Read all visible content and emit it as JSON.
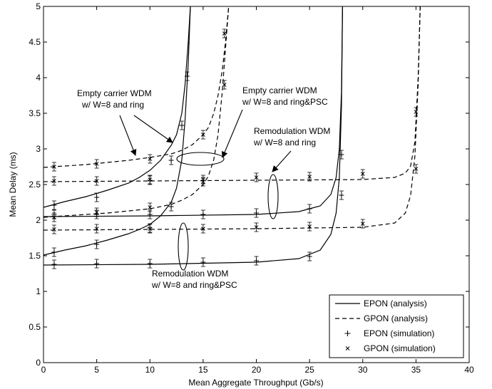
{
  "chart_data": {
    "type": "line",
    "xlabel": "Mean Aggregate Throughput (Gb/s)",
    "ylabel": "Mean Delay (ms)",
    "xlim": [
      0,
      40
    ],
    "ylim": [
      0,
      5
    ],
    "xticks": [
      0,
      5,
      10,
      15,
      20,
      25,
      30,
      35,
      40
    ],
    "yticks": [
      0,
      0.5,
      1,
      1.5,
      2,
      2.5,
      3,
      3.5,
      4,
      4.5,
      5
    ],
    "grid": false,
    "legend_position": "bottom-right",
    "legend": [
      {
        "label": "EPON (analysis)",
        "style": "solid"
      },
      {
        "label": "GPON (analysis)",
        "style": "dashed"
      },
      {
        "label": "EPON (simulation)",
        "style": "plus"
      },
      {
        "label": "GPON (simulation)",
        "style": "cross"
      }
    ],
    "annotations": [
      {
        "id": "ann-empty-ring",
        "lines": [
          "Empty carrier WDM",
          "w/ W=8 and ring"
        ]
      },
      {
        "id": "ann-empty-ringpsc",
        "lines": [
          "Empty carrier WDM",
          "w/ W=8 and ring&PSC"
        ]
      },
      {
        "id": "ann-remod-ring",
        "lines": [
          "Remodulation WDM",
          "w/ W=8 and ring"
        ]
      },
      {
        "id": "ann-remod-ringpsc",
        "lines": [
          "Remodulation WDM",
          "w/ W=8 and ring&PSC"
        ]
      }
    ],
    "series": [
      {
        "style": "solid",
        "x": [
          0,
          2,
          4,
          6,
          8,
          9,
          10,
          11,
          12,
          12.5,
          13,
          13.3,
          13.6,
          13.8
        ],
        "y": [
          2.18,
          2.26,
          2.33,
          2.42,
          2.52,
          2.6,
          2.7,
          2.84,
          3.05,
          3.2,
          3.5,
          3.9,
          4.5,
          5.0
        ]
      },
      {
        "style": "solid",
        "x": [
          0,
          2,
          4,
          6,
          8,
          9,
          10,
          11,
          12,
          12.5,
          13,
          13.3,
          13.6,
          13.8
        ],
        "y": [
          1.51,
          1.58,
          1.64,
          1.72,
          1.81,
          1.87,
          1.94,
          2.06,
          2.25,
          2.45,
          2.85,
          3.4,
          4.2,
          5.0
        ]
      },
      {
        "style": "dashed",
        "x": [
          0,
          2,
          4,
          6,
          8,
          10,
          12,
          13,
          14,
          15,
          15.5,
          16,
          16.4,
          16.8,
          17.1,
          17.4
        ],
        "y": [
          2.74,
          2.76,
          2.78,
          2.81,
          2.84,
          2.88,
          2.93,
          2.98,
          3.06,
          3.2,
          3.3,
          3.5,
          3.75,
          4.1,
          4.5,
          5.0
        ]
      },
      {
        "style": "dashed",
        "x": [
          0,
          2,
          4,
          6,
          8,
          10,
          12,
          13,
          14,
          15,
          15.5,
          16,
          16.4,
          16.8,
          17.1,
          17.4
        ],
        "y": [
          2.04,
          2.06,
          2.08,
          2.1,
          2.13,
          2.16,
          2.22,
          2.28,
          2.36,
          2.5,
          2.62,
          2.85,
          3.2,
          3.8,
          4.4,
          5.0
        ]
      },
      {
        "style": "solid",
        "x": [
          0,
          10,
          20,
          24,
          26,
          27,
          27.5,
          27.8,
          28,
          28.1
        ],
        "y": [
          2.05,
          2.06,
          2.08,
          2.12,
          2.2,
          2.36,
          2.6,
          3.0,
          3.8,
          5.0
        ]
      },
      {
        "style": "solid",
        "x": [
          0,
          10,
          20,
          24,
          26,
          27,
          27.5,
          27.8,
          28,
          28.1
        ],
        "y": [
          1.37,
          1.38,
          1.41,
          1.46,
          1.58,
          1.8,
          2.1,
          2.6,
          3.6,
          5.0
        ]
      },
      {
        "style": "dashed",
        "x": [
          0,
          10,
          20,
          30,
          33,
          34,
          34.5,
          34.9,
          35.2,
          35.4
        ],
        "y": [
          2.54,
          2.55,
          2.56,
          2.57,
          2.6,
          2.66,
          2.76,
          3.1,
          4.0,
          5.0
        ]
      },
      {
        "style": "dashed",
        "x": [
          0,
          10,
          20,
          30,
          33,
          34,
          34.5,
          34.9,
          35.2,
          35.4
        ],
        "y": [
          1.86,
          1.87,
          1.88,
          1.9,
          1.96,
          2.1,
          2.35,
          2.9,
          3.9,
          5.0
        ]
      }
    ],
    "epon_sim": [
      [
        1,
        2.21
      ],
      [
        5,
        2.32
      ],
      [
        10,
        2.56
      ],
      [
        12,
        2.84
      ],
      [
        13,
        3.33
      ],
      [
        13.5,
        4.02
      ],
      [
        1,
        1.55
      ],
      [
        5,
        1.66
      ],
      [
        10,
        1.89
      ],
      [
        12,
        2.19
      ],
      [
        1,
        2.08
      ],
      [
        5,
        2.08
      ],
      [
        10,
        2.08
      ],
      [
        15,
        2.08
      ],
      [
        20,
        2.1
      ],
      [
        25,
        2.16
      ],
      [
        28,
        2.35
      ],
      [
        28,
        2.92
      ],
      [
        1,
        1.38
      ],
      [
        5,
        1.39
      ],
      [
        10,
        1.39
      ],
      [
        15,
        1.41
      ],
      [
        20,
        1.43
      ],
      [
        25,
        1.49
      ]
    ],
    "gpon_sim": [
      [
        1,
        2.75
      ],
      [
        5,
        2.79
      ],
      [
        10,
        2.86
      ],
      [
        15,
        3.2
      ],
      [
        17,
        3.9
      ],
      [
        17,
        4.62
      ],
      [
        1,
        2.04
      ],
      [
        5,
        2.11
      ],
      [
        10,
        2.18
      ],
      [
        15,
        2.54
      ],
      [
        1,
        2.55
      ],
      [
        5,
        2.55
      ],
      [
        10,
        2.57
      ],
      [
        15,
        2.57
      ],
      [
        20,
        2.6
      ],
      [
        25,
        2.61
      ],
      [
        30,
        2.65
      ],
      [
        35,
        2.72
      ],
      [
        35,
        3.52
      ],
      [
        1,
        1.87
      ],
      [
        5,
        1.88
      ],
      [
        10,
        1.88
      ],
      [
        15,
        1.88
      ],
      [
        20,
        1.9
      ],
      [
        25,
        1.91
      ],
      [
        30,
        1.95
      ]
    ]
  }
}
